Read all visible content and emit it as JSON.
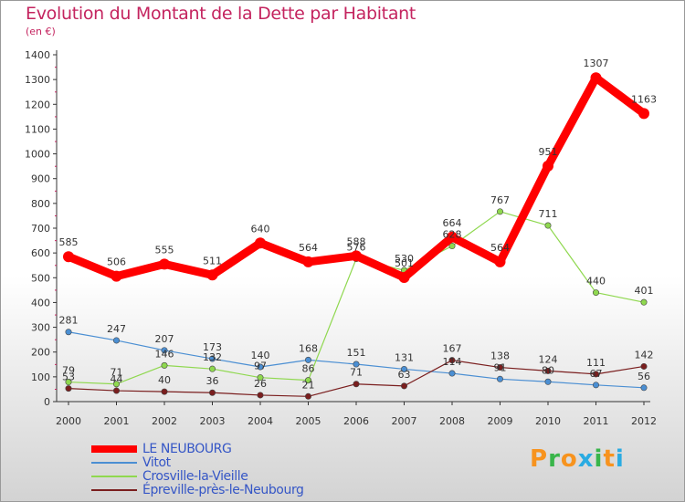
{
  "header": {
    "title": "Evolution du Montant de la Dette par Habitant",
    "unit": "(en €)"
  },
  "colors": {
    "title": "#c4245f",
    "legend_text": "#3556c6",
    "axis": "#333333"
  },
  "chart_data": {
    "type": "line",
    "title": "Evolution du Montant de la Dette par Habitant",
    "ylabel": "(en €)",
    "xlabel": "",
    "x": [
      "2000",
      "2001",
      "2002",
      "2003",
      "2004",
      "2005",
      "2006",
      "2007",
      "2008",
      "2009",
      "2010",
      "2011",
      "2012"
    ],
    "ylim": [
      0,
      1400
    ],
    "yticks": [
      "0",
      "100",
      "200",
      "300",
      "400",
      "500",
      "600",
      "700",
      "800",
      "900",
      "1000",
      "1100",
      "1200",
      "1300",
      "1400"
    ],
    "grid": false,
    "legend_position": "bottom-left",
    "series": [
      {
        "name": "LE NEUBOURG",
        "color": "#ff0000",
        "width": 9,
        "values": [
          585,
          506,
          555,
          511,
          640,
          564,
          588,
          501,
          664,
          564,
          951,
          1307,
          1163
        ],
        "labels": [
          "585",
          "506",
          "555",
          "511",
          "640",
          "564",
          "588",
          "501",
          "664",
          "564",
          "951",
          "1307",
          "1163"
        ]
      },
      {
        "name": "Vitot",
        "color": "#4b8fd3",
        "width": 1.2,
        "values": [
          281,
          247,
          207,
          173,
          140,
          168,
          151,
          131,
          114,
          91,
          80,
          67,
          56
        ],
        "labels": [
          "281",
          "247",
          "207",
          "173",
          "140",
          "168",
          "151",
          "131",
          "114",
          "91",
          "80",
          "67",
          "56"
        ]
      },
      {
        "name": "Crosville-la-Vieille",
        "color": "#8fd84f",
        "width": 1.2,
        "values": [
          79,
          71,
          146,
          132,
          97,
          86,
          576,
          530,
          628,
          767,
          711,
          440,
          401
        ],
        "labels": [
          "79",
          "71",
          "146",
          "132",
          "97",
          "86",
          "576",
          "530",
          "628",
          "767",
          "711",
          "440",
          "401"
        ]
      },
      {
        "name": "Épreville-près-le-Neubourg",
        "color": "#7a1e1e",
        "width": 1.2,
        "values": [
          53,
          44,
          40,
          36,
          26,
          21,
          71,
          63,
          167,
          138,
          124,
          111,
          142
        ],
        "labels": [
          "53",
          "44",
          "40",
          "36",
          "26",
          "21",
          "71",
          "63",
          "167",
          "138",
          "124",
          "111",
          "142"
        ]
      }
    ]
  },
  "legend": {
    "items": [
      {
        "label": "LE NEUBOURG",
        "color": "#ff0000"
      },
      {
        "label": "Vitot",
        "color": "#4b8fd3"
      },
      {
        "label": "Crosville-la-Vieille",
        "color": "#8fd84f"
      },
      {
        "label": "Épreville-près-le-Neubourg",
        "color": "#7a1e1e"
      }
    ]
  },
  "logo": {
    "text": "Proxiti",
    "letter_colors": [
      "#f7931e",
      "#39b54a",
      "#f7931e",
      "#29abe2",
      "#39b54a",
      "#f7931e",
      "#29abe2"
    ]
  }
}
